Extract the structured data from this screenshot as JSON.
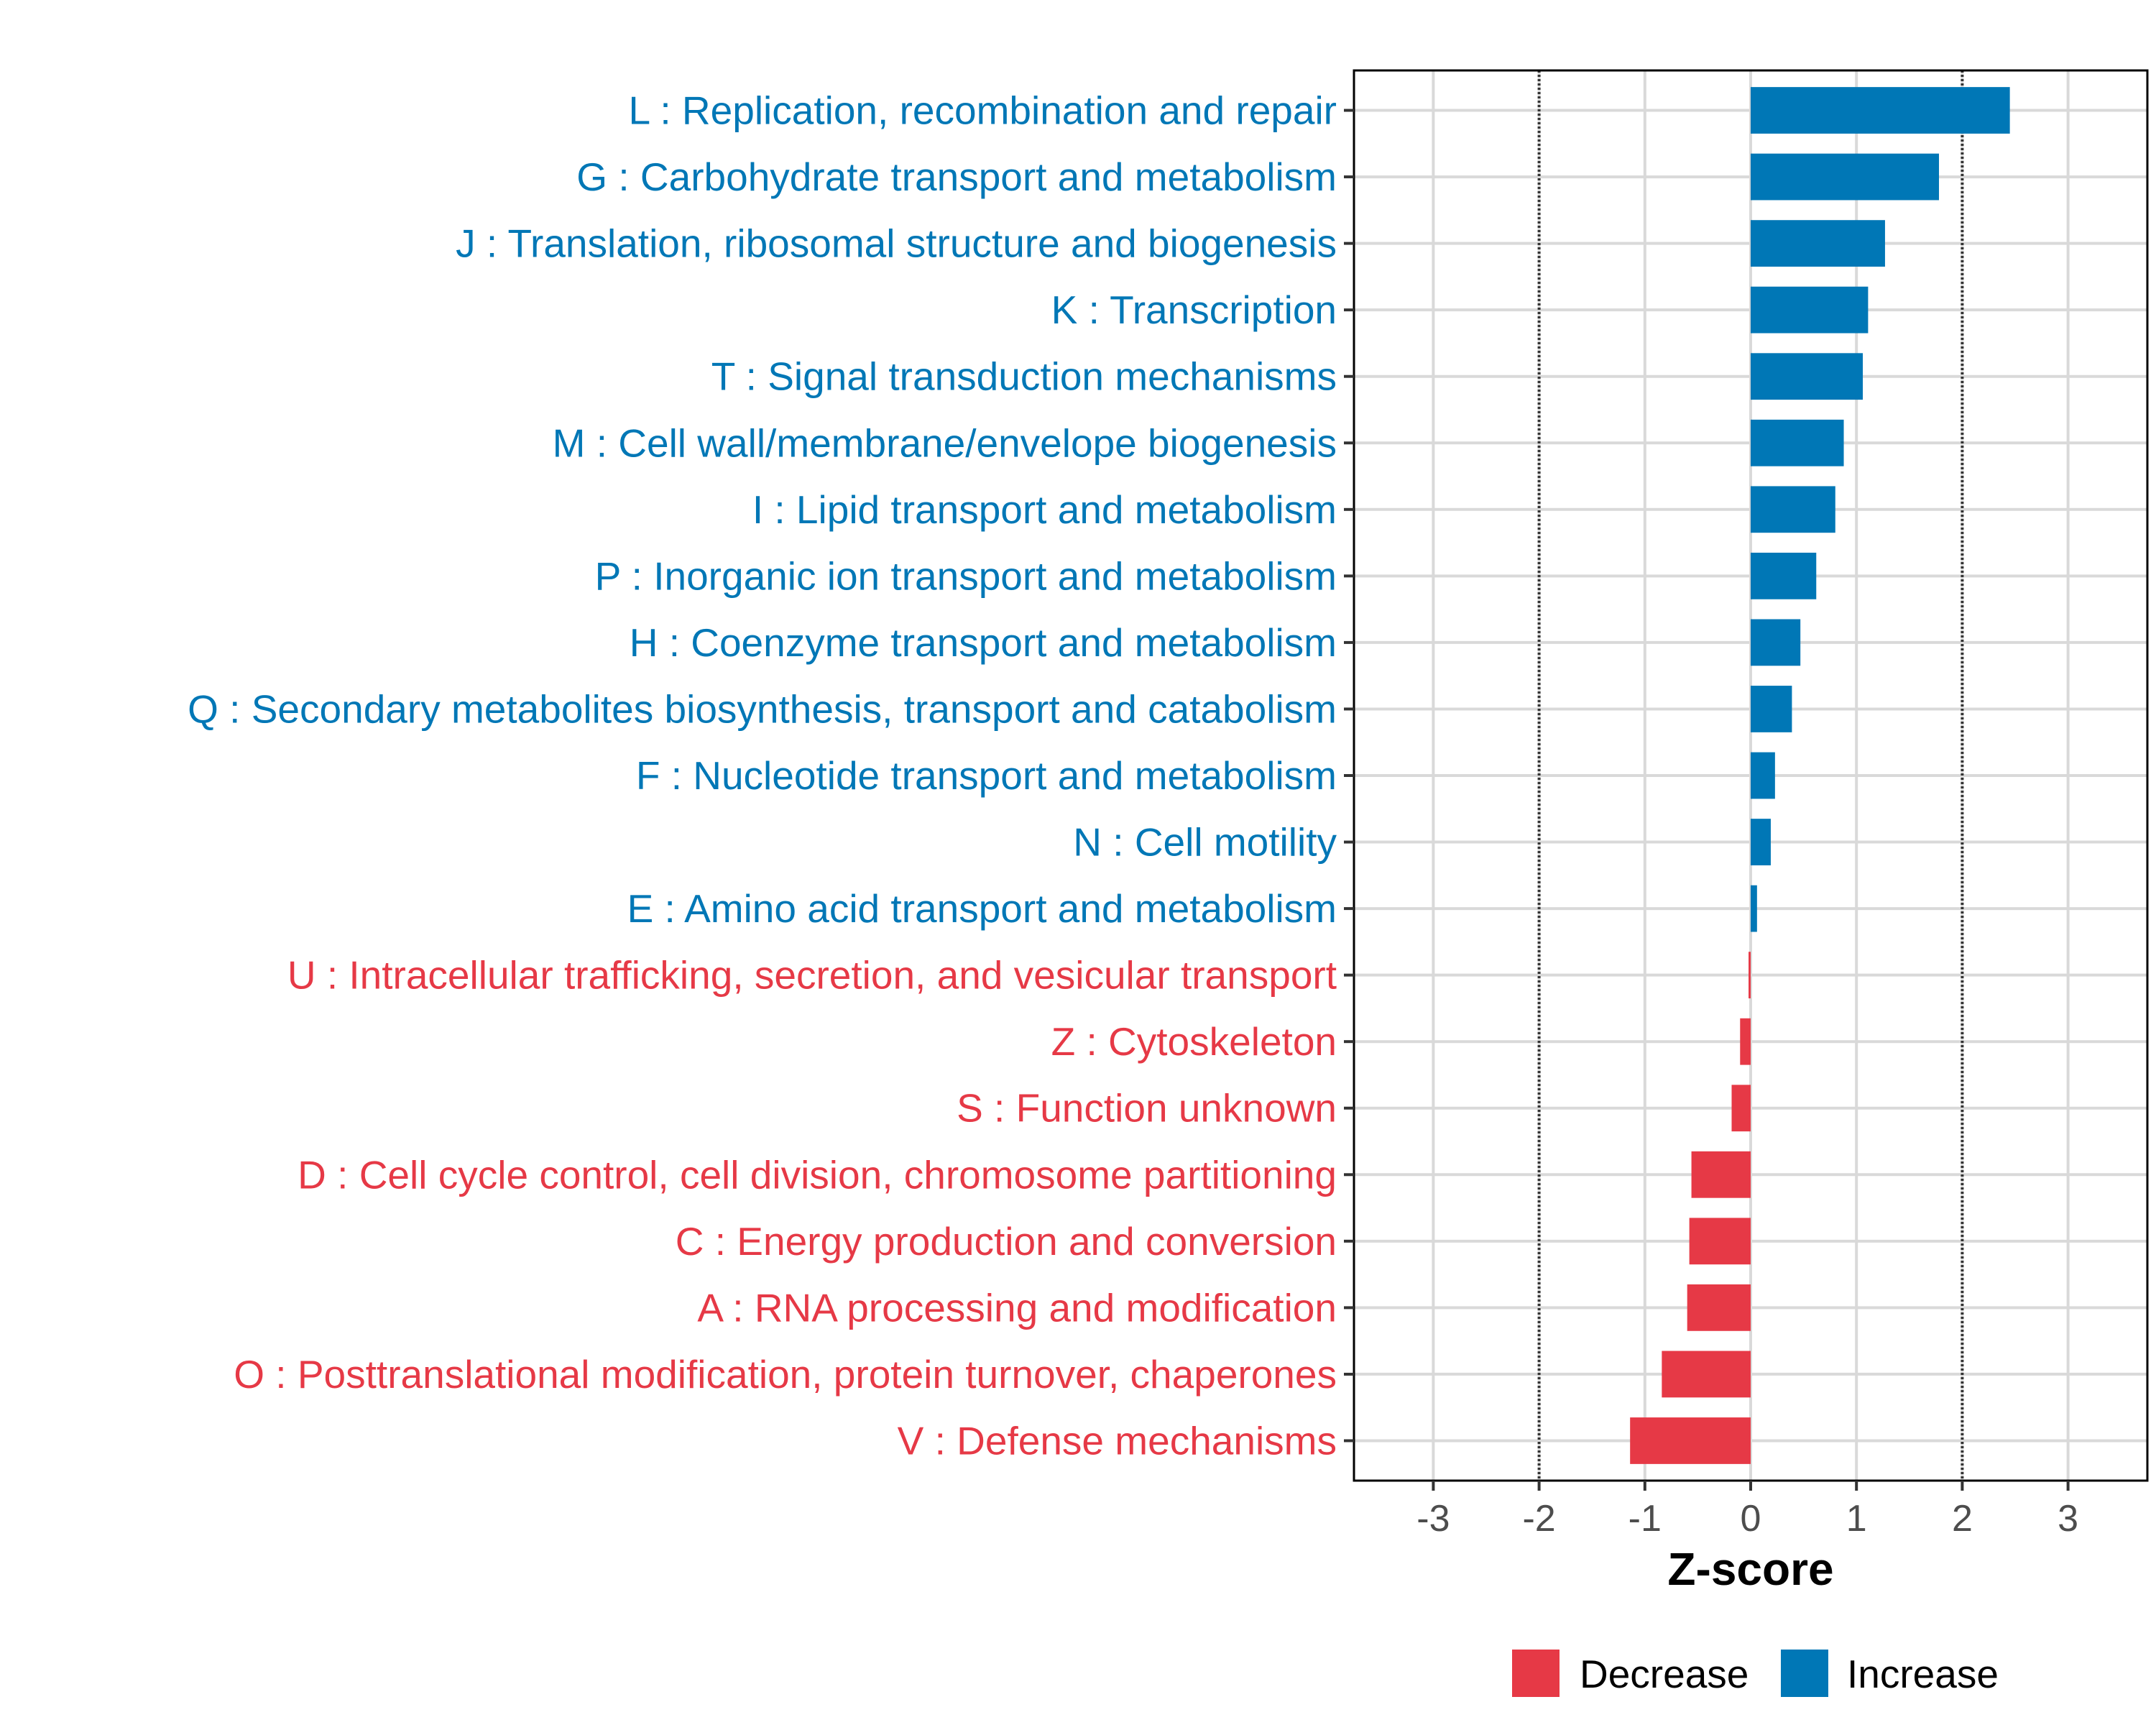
{
  "chart_data": {
    "type": "bar",
    "orientation": "horizontal",
    "title": "",
    "xlabel": "Z-score",
    "ylabel": "",
    "xlim": [
      -3.75,
      3.75
    ],
    "xticks": [
      -3,
      -2,
      -1,
      0,
      1,
      2,
      3
    ],
    "xtick_labels": [
      "-3",
      "-2",
      "-1",
      "0",
      "1",
      "2",
      "3"
    ],
    "threshold_lines": [
      -2,
      2
    ],
    "grid": true,
    "legend_position": "bottom",
    "series": [
      {
        "name": "Decrease",
        "color": "#e63946"
      },
      {
        "name": "Increase",
        "color": "#0077b6"
      }
    ],
    "categories": [
      "L : Replication, recombination and repair",
      "G : Carbohydrate transport and metabolism",
      "J : Translation, ribosomal structure and biogenesis",
      "K : Transcription",
      "T : Signal transduction mechanisms",
      "M : Cell wall/membrane/envelope biogenesis",
      "I : Lipid transport and metabolism",
      "P : Inorganic ion transport and metabolism",
      "H : Coenzyme transport and metabolism",
      "Q : Secondary metabolites biosynthesis, transport and catabolism",
      "F : Nucleotide transport and metabolism",
      "N : Cell motility",
      "E : Amino acid transport and metabolism",
      "U : Intracellular trafficking, secretion, and vesicular transport",
      "Z : Cytoskeleton",
      "S : Function unknown",
      "D : Cell cycle control, cell division, chromosome partitioning",
      "C : Energy production and conversion",
      "A : RNA processing and modification",
      "O : Posttranslational modification, protein turnover, chaperones",
      "V : Defense mechanisms"
    ],
    "values": [
      2.45,
      1.78,
      1.27,
      1.11,
      1.06,
      0.88,
      0.8,
      0.62,
      0.47,
      0.39,
      0.23,
      0.19,
      0.06,
      -0.02,
      -0.1,
      -0.18,
      -0.56,
      -0.58,
      -0.6,
      -0.84,
      -1.14
    ],
    "groups": [
      "Increase",
      "Increase",
      "Increase",
      "Increase",
      "Increase",
      "Increase",
      "Increase",
      "Increase",
      "Increase",
      "Increase",
      "Increase",
      "Increase",
      "Increase",
      "Decrease",
      "Decrease",
      "Decrease",
      "Decrease",
      "Decrease",
      "Decrease",
      "Decrease",
      "Decrease"
    ]
  },
  "legend": {
    "decrease_label": "Decrease",
    "increase_label": "Increase"
  },
  "colors": {
    "decrease": "#e63946",
    "increase": "#0077b6",
    "grid": "#d9d9d9",
    "threshold": "#333333"
  }
}
